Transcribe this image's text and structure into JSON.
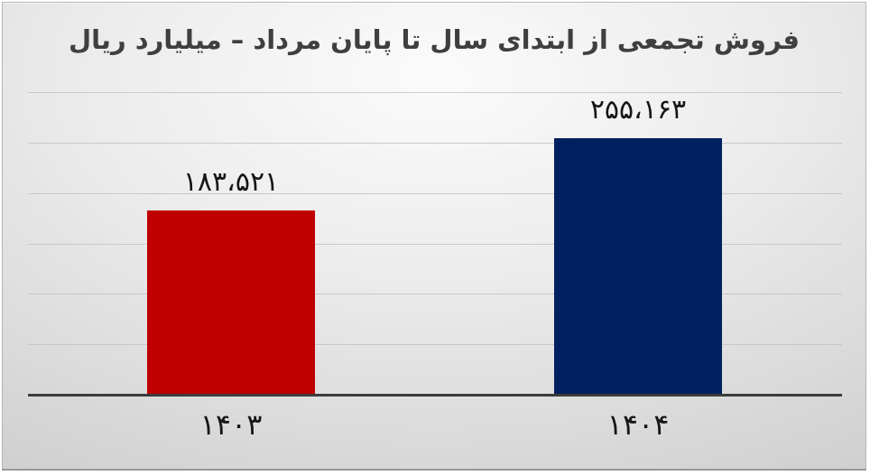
{
  "slide": {
    "title": "فروش تجمعی از ابتدای سال تا پایان مرداد – میلیارد ریال"
  },
  "chart_data": {
    "type": "bar",
    "title": "فروش تجمعی از ابتدای سال تا پایان مرداد – میلیارد ریال",
    "title_translation": "Cumulative sales from start of year to end of Mordad – billion rials",
    "direction": "rtl",
    "categories": [
      "۱۴۰۳",
      "۱۴۰۴"
    ],
    "values": [
      183521,
      255163
    ],
    "value_labels": [
      "۱۸۳،۵۲۱",
      "۲۵۵،۱۶۳"
    ],
    "series": [
      {
        "name": "۱۴۰۳",
        "value": 183521,
        "display": "۱۸۳،۵۲۱",
        "color": "#c00000"
      },
      {
        "name": "۱۴۰۴",
        "value": 255163,
        "display": "۲۵۵،۱۶۳",
        "color": "#002060"
      }
    ],
    "bar_colors": [
      "#c00000",
      "#002060"
    ],
    "xlabel": "",
    "ylabel": "",
    "ylim": [
      0,
      300000
    ],
    "gridline_step": 50000,
    "grid": true,
    "y_tick_labels_visible": false,
    "legend": false
  },
  "colors": {
    "title_text": "#3f3f3f",
    "label_text": "#161616",
    "axis_line": "#3c3c3c",
    "gridline": "#c3c3c3",
    "slide_background": "#e6e6e6"
  }
}
